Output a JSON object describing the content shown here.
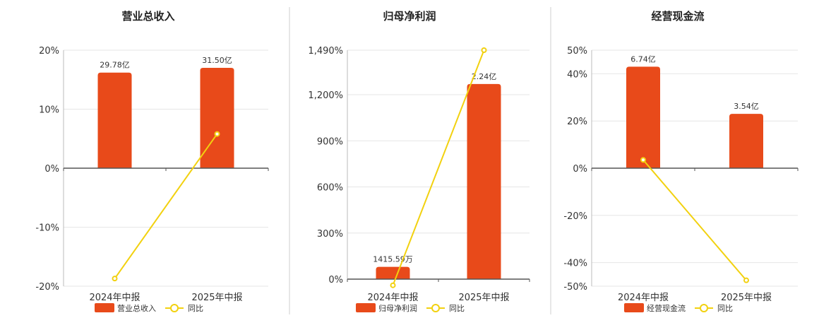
{
  "colors": {
    "bar": "#E84A1A",
    "line": "#F2D10F",
    "axis": "#555555"
  },
  "chart_data": [
    {
      "type": "bar",
      "title": "营业总收入",
      "categories": [
        "2024年中报",
        "2025年中报"
      ],
      "ylim": [
        -20,
        20
      ],
      "ytick_labels": [
        "20%",
        "10%",
        "0%",
        "-10%",
        "-20%"
      ],
      "ytick_values": [
        20,
        10,
        0,
        -10,
        -20
      ],
      "bar_values": [
        16.2,
        17.0
      ],
      "bar_labels": [
        "29.78亿",
        "31.50亿"
      ],
      "line_values": [
        -18.7,
        5.8
      ],
      "legend": [
        "营业总收入",
        "同比"
      ],
      "grid": true
    },
    {
      "type": "bar",
      "title": "归母净利润",
      "categories": [
        "2024年中报",
        "2025年中报"
      ],
      "ylim": [
        0,
        1490
      ],
      "ytick_labels": [
        "1,490%",
        "1,200%",
        "900%",
        "600%",
        "300%",
        "0%"
      ],
      "ytick_values": [
        1490,
        1200,
        900,
        600,
        300,
        0
      ],
      "bar_values": [
        80,
        1270
      ],
      "bar_labels": [
        "1415.59万",
        "2.24亿"
      ],
      "line_values": [
        -40,
        1490
      ],
      "legend": [
        "归母净利润",
        "同比"
      ],
      "grid": true
    },
    {
      "type": "bar",
      "title": "经营现金流",
      "categories": [
        "2024年中报",
        "2025年中报"
      ],
      "ylim": [
        -50,
        50
      ],
      "ytick_labels": [
        "50%",
        "40%",
        "20%",
        "0%",
        "-20%",
        "-40%",
        "-50%"
      ],
      "ytick_values": [
        50,
        40,
        20,
        0,
        -20,
        -40,
        -50
      ],
      "bar_values": [
        43,
        23
      ],
      "bar_labels": [
        "6.74亿",
        "3.54亿"
      ],
      "line_values": [
        3.5,
        -47.5
      ],
      "legend": [
        "经营现金流",
        "同比"
      ],
      "grid": true
    }
  ]
}
